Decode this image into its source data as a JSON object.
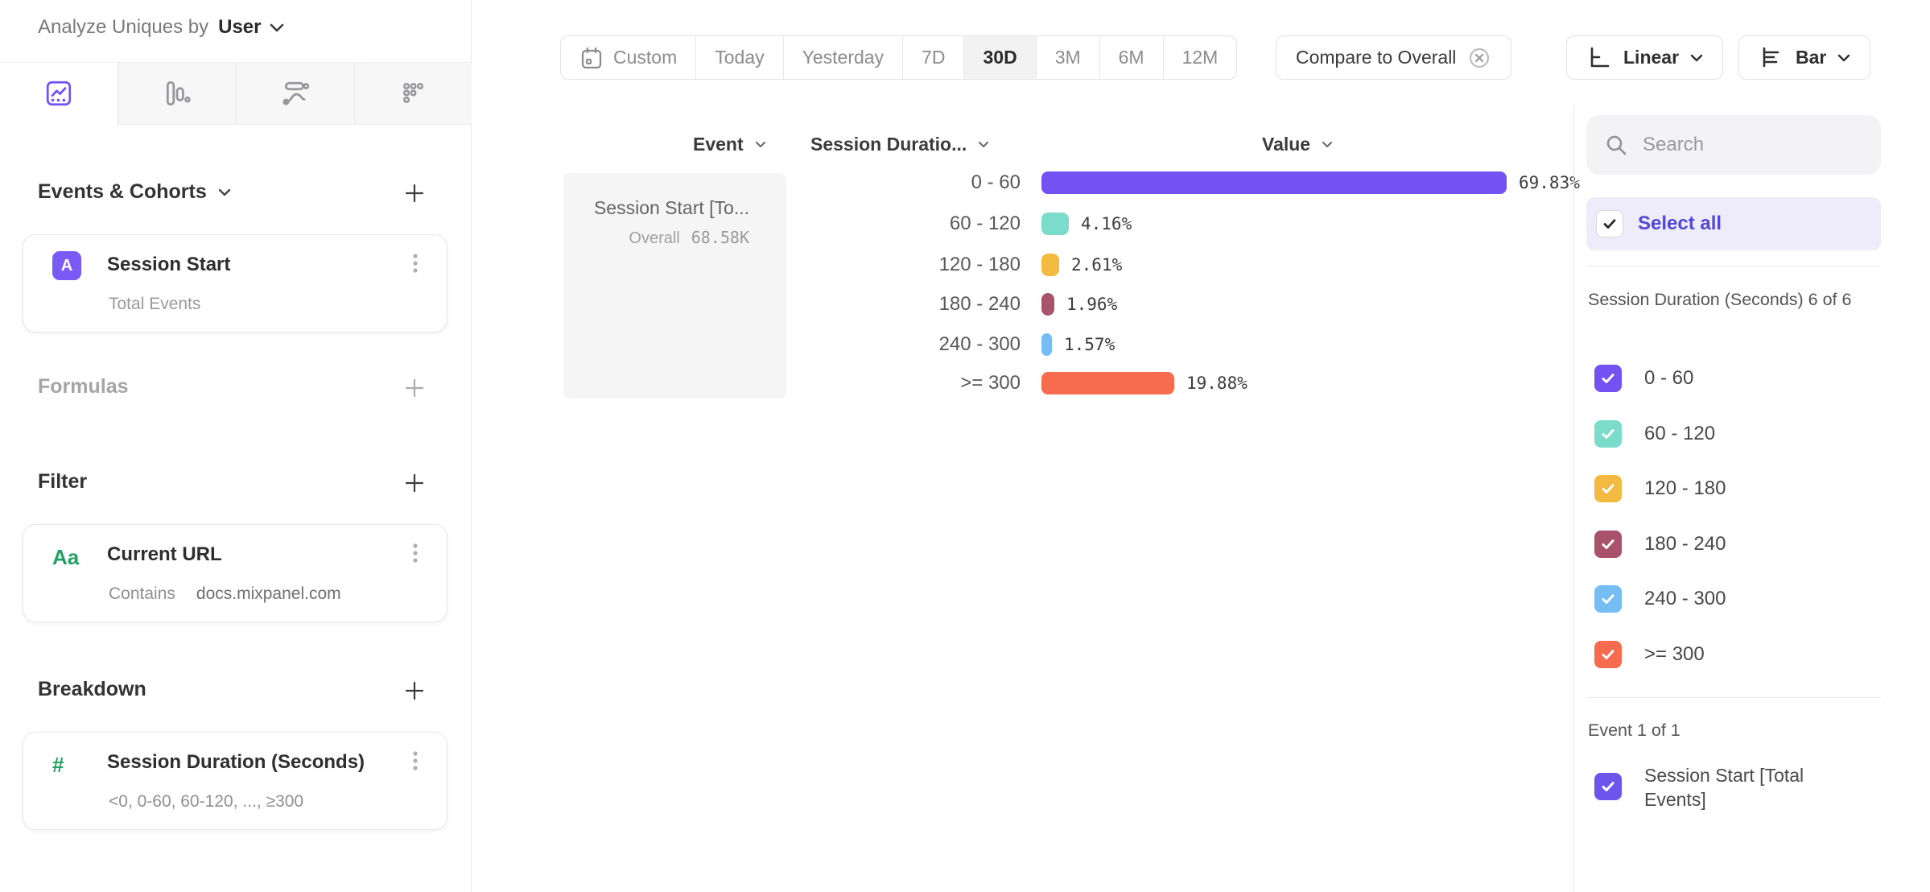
{
  "header": {
    "analyze_label": "Analyze Uniques by",
    "analyze_value": "User"
  },
  "sidebar": {
    "tabs": [
      {
        "name": "insights",
        "active": true
      },
      {
        "name": "funnels",
        "active": false
      },
      {
        "name": "flows",
        "active": false
      },
      {
        "name": "retention",
        "active": false
      }
    ],
    "events_header": "Events & Cohorts",
    "event_card": {
      "badge": "A",
      "title": "Session Start",
      "subtitle": "Total Events"
    },
    "formulas_header": "Formulas",
    "filter_header": "Filter",
    "filter_card": {
      "badge": "Aa",
      "title": "Current URL",
      "operator": "Contains",
      "value": "docs.mixpanel.com"
    },
    "breakdown_header": "Breakdown",
    "breakdown_card": {
      "badge": "#",
      "title": "Session Duration (Seconds)",
      "subtitle": "<0, 0-60, 60-120, ..., ≥300"
    }
  },
  "toolbar": {
    "date_ranges": [
      "Custom",
      "Today",
      "Yesterday",
      "7D",
      "30D",
      "3M",
      "6M",
      "12M"
    ],
    "selected_range": "30D",
    "compare_label": "Compare to Overall",
    "scale_label": "Linear",
    "chart_type_label": "Bar"
  },
  "chart_data": {
    "type": "bar",
    "orientation": "horizontal",
    "columns": {
      "event": "Event",
      "breakdown": "Session Duratio...",
      "value": "Value"
    },
    "event_cell": {
      "name": "Session Start [To...",
      "overall_label": "Overall",
      "overall_value": "68.58K"
    },
    "categories": [
      "0 - 60",
      "60 - 120",
      "120 - 180",
      "180 - 240",
      "240 - 300",
      ">= 300"
    ],
    "values": [
      69.83,
      4.16,
      2.61,
      1.96,
      1.57,
      19.88
    ],
    "value_labels": [
      "69.83%",
      "4.16%",
      "2.61%",
      "1.96%",
      "1.57%",
      "19.88%"
    ],
    "colors": [
      "#7451f3",
      "#7cdccb",
      "#f3ba41",
      "#a9526b",
      "#76bdf3",
      "#f76c4f"
    ],
    "xlim": [
      0,
      100
    ],
    "legend_position": "right-panel",
    "grid": false
  },
  "right_panel": {
    "search_placeholder": "Search",
    "select_all_label": "Select all",
    "group1_label": "Session Duration (Seconds) 6 of 6",
    "items": [
      {
        "label": "0 - 60",
        "color": "#7451f3",
        "checked": true
      },
      {
        "label": "60 - 120",
        "color": "#7cdccb",
        "checked": true
      },
      {
        "label": "120 - 180",
        "color": "#f3ba41",
        "checked": true
      },
      {
        "label": "180 - 240",
        "color": "#a9526b",
        "checked": true
      },
      {
        "label": "240 - 300",
        "color": "#76bdf3",
        "checked": true
      },
      {
        "label": ">= 300",
        "color": "#f76c4f",
        "checked": true
      }
    ],
    "group2_label": "Event 1 of 1",
    "event_item": {
      "label": "Session Start [Total Events]",
      "color": "#6d55ec",
      "checked": true
    }
  }
}
